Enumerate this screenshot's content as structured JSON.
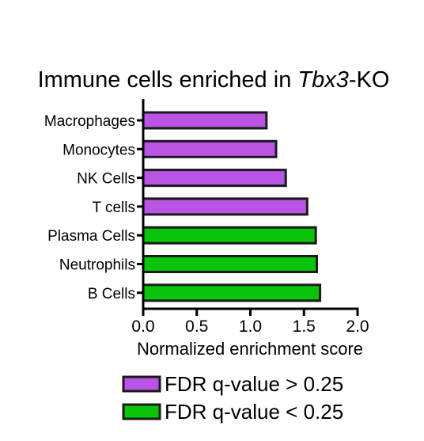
{
  "chart_data": {
    "type": "bar",
    "orientation": "horizontal",
    "title_prefix": "Immune cells enriched in ",
    "title_italic": "Tbx3",
    "title_suffix": "-KO",
    "xlabel": "Normalized enrichment score",
    "ylabel": "",
    "xlim": [
      0,
      2.0
    ],
    "xticks": [
      "0.0",
      "0.5",
      "1.0",
      "1.5",
      "2.0"
    ],
    "grid": false,
    "legend_position": "bottom",
    "categories": [
      "Macrophages",
      "Monocytes",
      "NK Cells",
      "T cells",
      "Plasma Cells",
      "Neutrophils",
      "B Cells"
    ],
    "values": [
      1.15,
      1.24,
      1.33,
      1.53,
      1.61,
      1.62,
      1.65
    ],
    "groups": [
      "high",
      "high",
      "high",
      "high",
      "low",
      "low",
      "low"
    ],
    "legend": [
      {
        "key": "high",
        "label": "FDR q-value > 0.25",
        "color": "#b954e4"
      },
      {
        "key": "low",
        "label": "FDR q-value < 0.25",
        "color": "#0ac40a"
      }
    ],
    "bar_outline_color": "#1a1a1a"
  }
}
